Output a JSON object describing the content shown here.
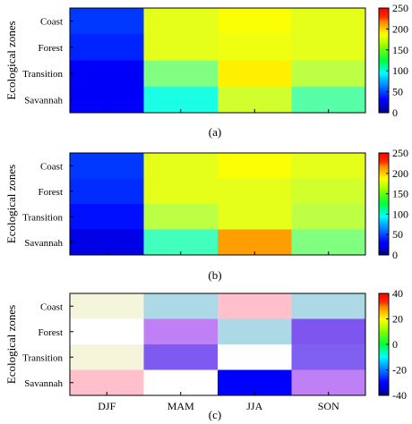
{
  "chart_data": [
    {
      "type": "heatmap",
      "panel_label": "(a)",
      "ylabel": "Ecological zones",
      "rows": [
        "Coast",
        "Forest",
        "Transition",
        "Savannah"
      ],
      "columns": [
        "DJF",
        "MAM",
        "JJA",
        "SON"
      ],
      "values": [
        [
          45,
          150,
          155,
          150
        ],
        [
          40,
          150,
          152,
          150
        ],
        [
          30,
          125,
          160,
          140
        ],
        [
          30,
          100,
          145,
          115
        ]
      ],
      "colorbar": {
        "min": 0,
        "max": 250,
        "ticks": [
          0,
          50,
          100,
          150,
          200,
          250
        ],
        "colormap": "jet"
      },
      "show_xticklabels": false
    },
    {
      "type": "heatmap",
      "panel_label": "(b)",
      "ylabel": "Ecological zones",
      "rows": [
        "Coast",
        "Forest",
        "Transition",
        "Savannah"
      ],
      "columns": [
        "DJF",
        "MAM",
        "JJA",
        "SON"
      ],
      "values": [
        [
          45,
          150,
          155,
          150
        ],
        [
          42,
          150,
          150,
          145
        ],
        [
          35,
          140,
          150,
          140
        ],
        [
          25,
          110,
          180,
          125
        ]
      ],
      "colorbar": {
        "min": 0,
        "max": 250,
        "ticks": [
          0,
          50,
          100,
          150,
          200,
          250
        ],
        "colormap": "jet"
      },
      "show_xticklabels": false
    },
    {
      "type": "heatmap",
      "panel_label": "(c)",
      "ylabel": "Ecological zones",
      "rows": [
        "Coast",
        "Forest",
        "Transition",
        "Savannah"
      ],
      "columns": [
        "DJF",
        "MAM",
        "JJA",
        "SON"
      ],
      "cell_colors": [
        [
          "#f5f5dc",
          "#add8e6",
          "#ffc0cb",
          "#add8e6"
        ],
        [
          "#ffffff",
          "#c080f5",
          "#add8e6",
          "#7f55f0"
        ],
        [
          "#f5f5dc",
          "#7f5af0",
          "#ffffff",
          "#8060f0"
        ],
        [
          "#ffc0cb",
          "#ffffff",
          "#0000ff",
          "#c080f5"
        ]
      ],
      "colorbar": {
        "min": -40,
        "max": 40,
        "ticks": [
          -40,
          -20,
          0,
          20,
          40
        ],
        "colormap": "jet"
      },
      "show_xticklabels": true
    }
  ]
}
